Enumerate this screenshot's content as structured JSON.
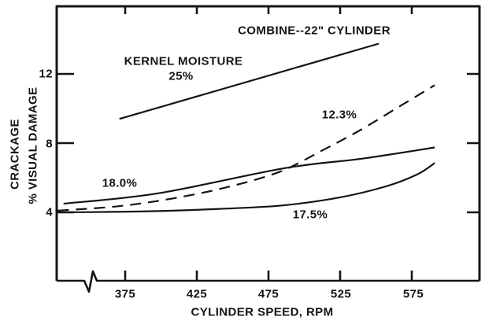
{
  "colors": {
    "ink": "#141414",
    "background": "#ffffff"
  },
  "chart_data": {
    "type": "line",
    "title": "COMBINE--22\" CYLINDER",
    "xlabel": "CYLINDER SPEED, RPM",
    "ylabel_line1": "CRACKAGE",
    "ylabel_line2": "% VISUAL DAMAGE",
    "x_ticks": [
      375,
      425,
      475,
      525,
      575
    ],
    "y_ticks": [
      4,
      8,
      12
    ],
    "xlim": [
      327,
      622
    ],
    "ylim": [
      0,
      16
    ],
    "grid": false,
    "x_axis_break": true,
    "legend_position": "inline-labels",
    "series": [
      {
        "name": "kernel moisture 25%",
        "label": "25%",
        "style": "solid",
        "x": [
          371,
          552
        ],
        "y": [
          9.4,
          13.75
        ]
      },
      {
        "name": "kernel moisture 12.3%",
        "label": "12.3%",
        "style": "dashed",
        "x": [
          328,
          370,
          408,
          446,
          483,
          513,
          539,
          567,
          591
        ],
        "y": [
          4.1,
          4.35,
          4.8,
          5.45,
          6.35,
          7.6,
          8.75,
          10.15,
          11.35
        ]
      },
      {
        "name": "kernel moisture 18.0%",
        "label": "18.0%",
        "style": "solid",
        "x": [
          332,
          398,
          486,
          540,
          591
        ],
        "y": [
          4.5,
          5.1,
          6.55,
          7.1,
          7.75
        ]
      },
      {
        "name": "kernel moisture 17.5%",
        "label": "17.5%",
        "style": "solid",
        "x": [
          327,
          386,
          441,
          485,
          524,
          557,
          579,
          591
        ],
        "y": [
          4.0,
          4.05,
          4.2,
          4.4,
          4.85,
          5.5,
          6.2,
          6.85
        ]
      }
    ],
    "annotations": [
      {
        "text": "KERNEL MOISTURE",
        "labels_series": "kernel moisture 25%"
      },
      {
        "text": "25%",
        "labels_series": "kernel moisture 25%"
      },
      {
        "text": "12.3%",
        "labels_series": "kernel moisture 12.3%"
      },
      {
        "text": "18.0%",
        "labels_series": "kernel moisture 18.0%"
      },
      {
        "text": "17.5%",
        "labels_series": "kernel moisture 17.5%"
      }
    ]
  }
}
